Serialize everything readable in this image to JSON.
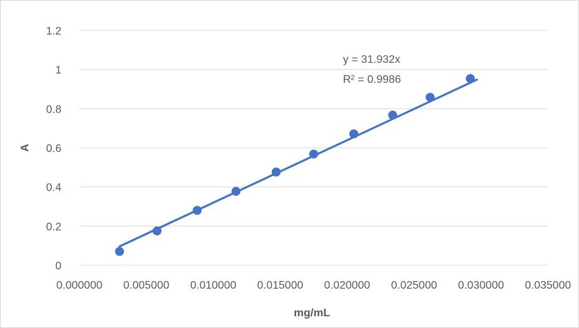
{
  "chart_data": {
    "type": "scatter",
    "title": "",
    "xlabel": "mg/mL",
    "ylabel": "A",
    "xlim": [
      0,
      0.035
    ],
    "ylim": [
      0,
      1.2
    ],
    "x_ticks": [
      "0.000000",
      "0.005000",
      "0.010000",
      "0.015000",
      "0.020000",
      "0.025000",
      "0.030000",
      "0.035000"
    ],
    "y_ticks": [
      "0",
      "0.2",
      "0.4",
      "0.6",
      "0.8",
      "1",
      "1.2"
    ],
    "grid": "horizontal",
    "legend": "none",
    "series": [
      {
        "x": [
          0.003,
          0.0058,
          0.0088,
          0.0117,
          0.0147,
          0.0175,
          0.0205,
          0.0234,
          0.0262,
          0.0292
        ],
        "y": [
          0.07,
          0.175,
          0.28,
          0.377,
          0.476,
          0.568,
          0.671,
          0.767,
          0.858,
          0.954
        ],
        "color": "#4472c4"
      }
    ],
    "trendline": {
      "type": "linear",
      "slope": 31.932,
      "intercept": 0,
      "x_range": [
        0.003,
        0.0297
      ],
      "equation": "y = 31.932x",
      "r_squared": "R² = 0.9986",
      "color": "#4472c4"
    }
  }
}
